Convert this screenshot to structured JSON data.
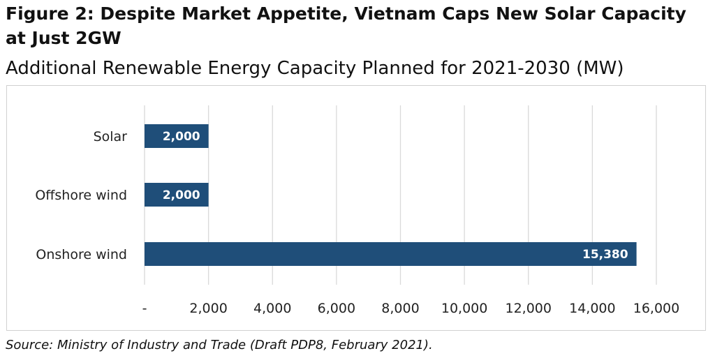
{
  "figure": {
    "title": "Figure 2: Despite Market Appetite, Vietnam Caps New Solar Capacity at Just 2GW",
    "subtitle": "Additional Renewable Energy Capacity Planned for 2021-2030 (MW)",
    "source": "Source: Ministry of Industry and Trade (Draft PDP8, February 2021)."
  },
  "colors": {
    "bar": "#1f4e79",
    "gridline": "#d9d9d9",
    "frame": "#d0d0d0",
    "value_label": "#ffffff"
  },
  "chart_data": {
    "type": "bar",
    "orientation": "horizontal",
    "categories": [
      "Solar",
      "Offshore wind",
      "Onshore wind"
    ],
    "values": [
      2000,
      2000,
      15380
    ],
    "value_labels": [
      "2,000",
      "2,000",
      "15,380"
    ],
    "xlim": [
      0,
      16000
    ],
    "x_ticks": [
      0,
      2000,
      4000,
      6000,
      8000,
      10000,
      12000,
      14000,
      16000
    ],
    "x_tick_labels": [
      "-",
      "2,000",
      "4,000",
      "6,000",
      "8,000",
      "10,000",
      "12,000",
      "14,000",
      "16,000"
    ],
    "grid": "vertical",
    "legend": "none"
  }
}
